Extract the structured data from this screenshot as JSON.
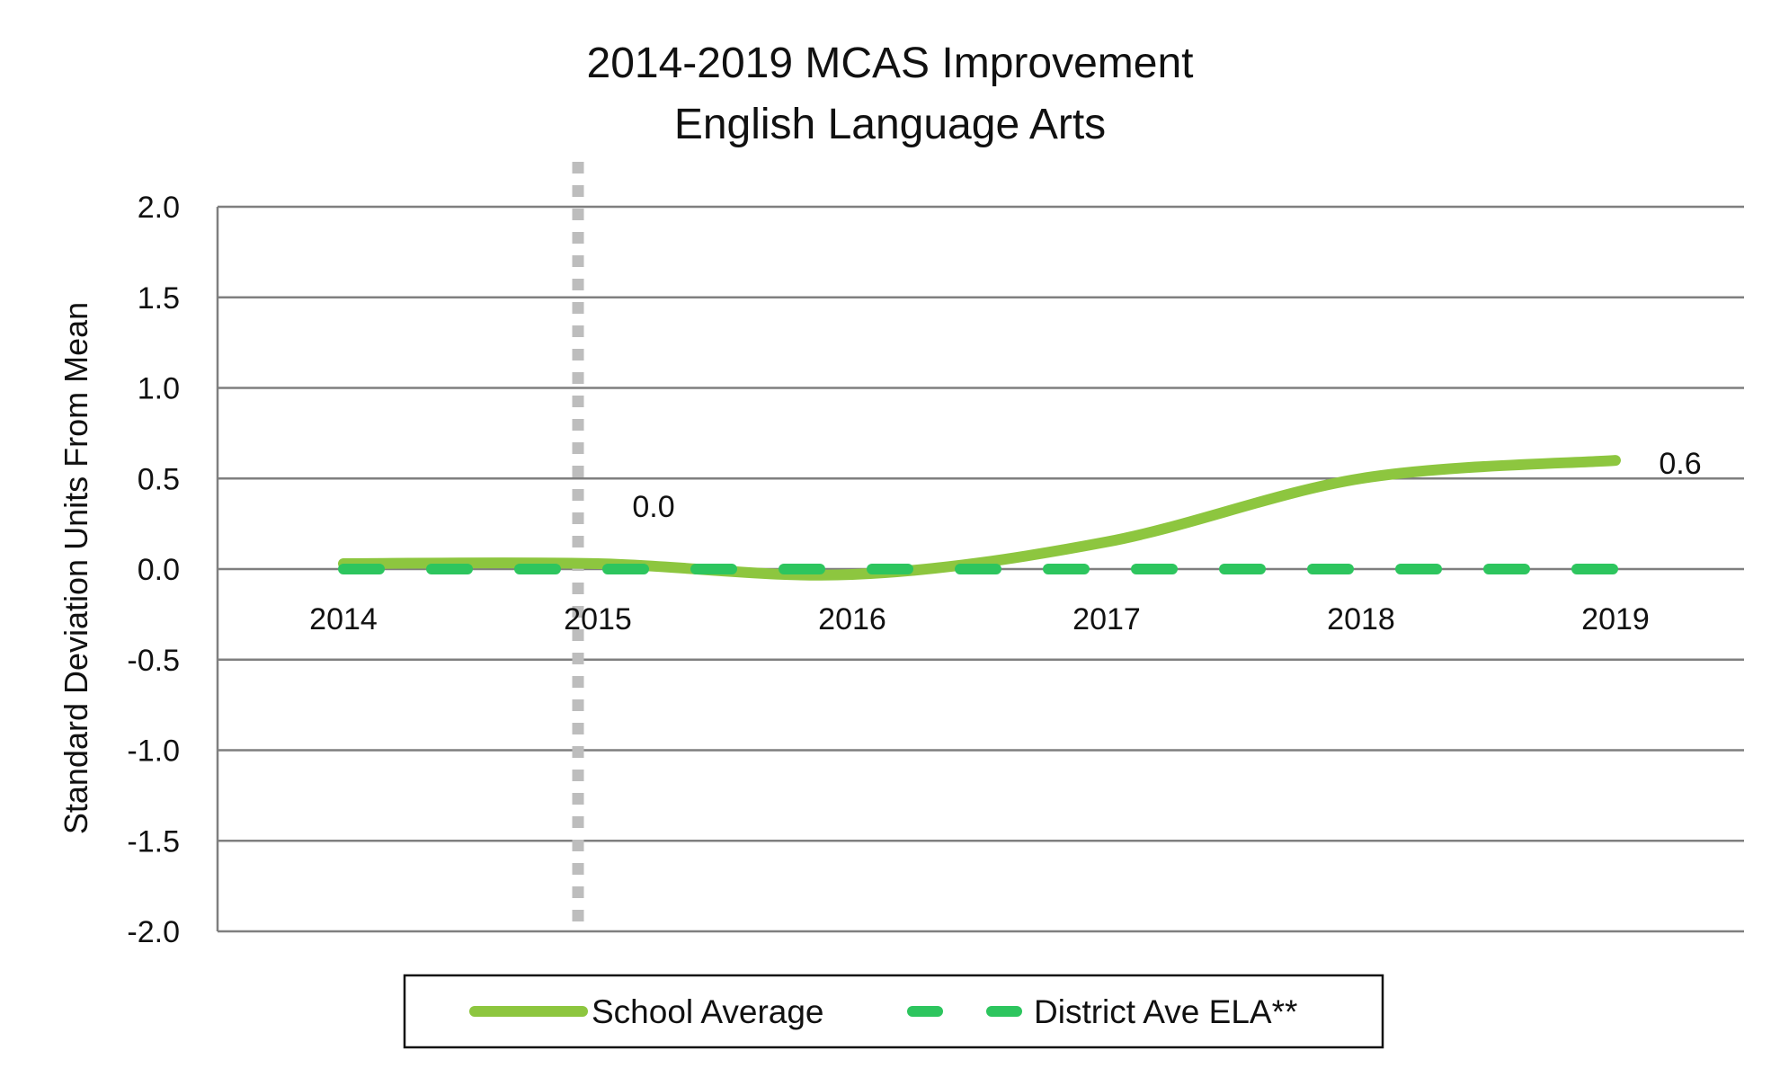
{
  "chart_data": {
    "type": "line",
    "title": [
      "2014-2019 MCAS Improvement",
      "English Language Arts"
    ],
    "ylabel": "Standard Deviation Units From Mean",
    "xlabel": "",
    "categories": [
      "2014",
      "2015",
      "2016",
      "2017",
      "2018",
      "2019"
    ],
    "ylim": [
      -2.0,
      2.0
    ],
    "yticks": [
      "2.0",
      "1.5",
      "1.0",
      "0.5",
      "0.0",
      "-0.5",
      "-1.0",
      "-1.5",
      "-2.0"
    ],
    "grid": true,
    "reference_line": {
      "x": "2015",
      "style": "dotted",
      "color": "#bdbdbd"
    },
    "series": [
      {
        "name": "School Average",
        "values": [
          0.03,
          0.03,
          -0.03,
          0.15,
          0.5,
          0.6
        ],
        "color": "#8dc63f",
        "style": "solid"
      },
      {
        "name": "District Ave ELA**",
        "values": [
          0.0,
          0.0,
          0.0,
          0.0,
          0.0,
          0.0
        ],
        "color": "#2dc55e",
        "style": "dashed"
      }
    ],
    "annotations": [
      {
        "text": "0.0",
        "x": "2015",
        "y": 0.03
      },
      {
        "text": "0.6",
        "x": "2019",
        "y": 0.6
      }
    ],
    "legend": {
      "placement": "bottom",
      "entries": [
        "School Average",
        "District Ave ELA**"
      ]
    }
  }
}
